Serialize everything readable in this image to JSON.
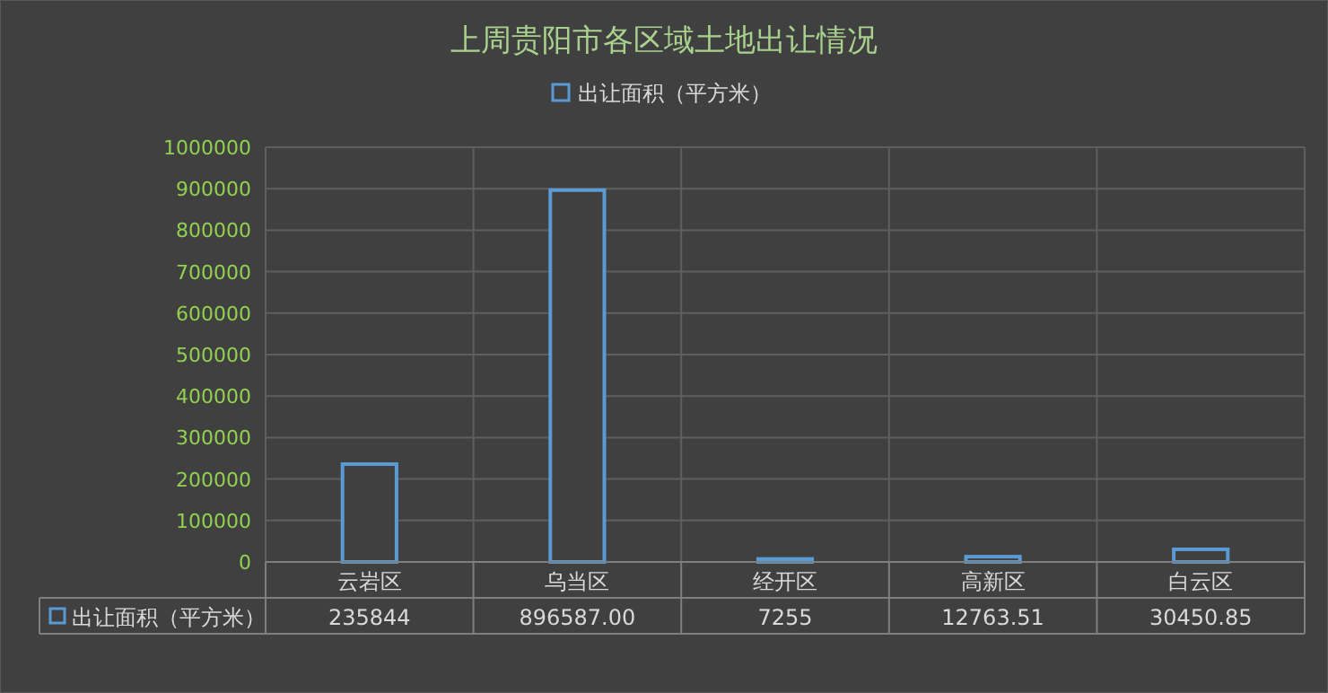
{
  "chart_data": {
    "type": "bar",
    "title": "上周贵阳市各区域土地出让情况",
    "categories": [
      "云岩区",
      "乌当区",
      "经开区",
      "高新区",
      "白云区"
    ],
    "series": [
      {
        "name": "出让面积（平方米）",
        "color": "#5b9bd5",
        "values": [
          235844,
          896587.0,
          7255,
          12763.51,
          30450.85
        ],
        "value_labels": [
          "235844",
          "896587.00",
          "7255",
          "12763.51",
          "30450.85"
        ]
      }
    ],
    "ylim": [
      0,
      1000000
    ],
    "yticks": [
      0,
      100000,
      200000,
      300000,
      400000,
      500000,
      600000,
      700000,
      800000,
      900000,
      1000000
    ],
    "grid": true,
    "legend": "top"
  }
}
